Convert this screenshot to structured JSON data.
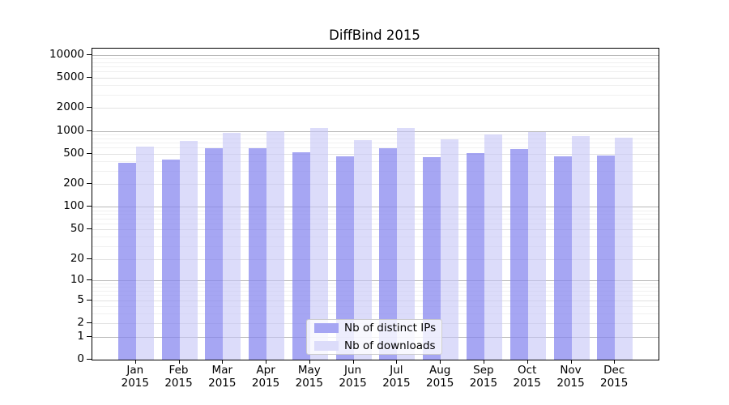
{
  "chart_data": {
    "type": "bar",
    "title": "DiffBind 2015",
    "categories": [
      "Jan",
      "Feb",
      "Mar",
      "Apr",
      "May",
      "Jun",
      "Jul",
      "Aug",
      "Sep",
      "Oct",
      "Nov",
      "Dec"
    ],
    "category_year": "2015",
    "series": [
      {
        "name": "Nb of distinct IPs",
        "color": "rgba(132,132,238,0.72)",
        "legend_color": "#a6a6f3",
        "values": [
          380,
          425,
          595,
          585,
          520,
          465,
          585,
          455,
          505,
          575,
          465,
          475
        ]
      },
      {
        "name": "Nb of downloads",
        "color": "rgba(196,196,246,0.6)",
        "legend_color": "#dcdcfa",
        "values": [
          620,
          730,
          940,
          985,
          1100,
          755,
          1100,
          775,
          905,
          955,
          865,
          810
        ]
      }
    ],
    "y_axis": {
      "scale": "log1p",
      "max": 12000,
      "tick_values": [
        10000,
        5000,
        2000,
        1000,
        500,
        200,
        100,
        50,
        20,
        10,
        5,
        2,
        1,
        0
      ],
      "tick_labels": [
        "10000",
        "5000",
        "2000",
        "1000",
        "500",
        "200",
        "100",
        "50",
        "20",
        "10",
        "5",
        "2",
        "1",
        "0"
      ]
    },
    "grid": {
      "major_color": "#b9b9b9",
      "labeled_color": "#e1e1e1",
      "minor_color": "#f0f0f0"
    },
    "legend": {
      "position": "bottom-center",
      "frame": true
    }
  }
}
